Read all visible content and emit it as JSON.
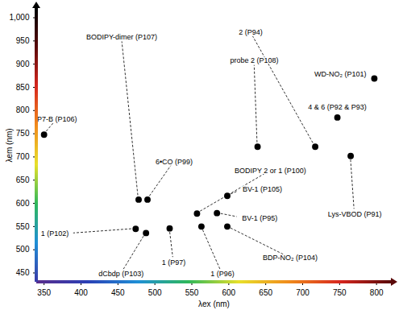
{
  "chart_data": {
    "type": "scatter",
    "x_label": "λex (nm)",
    "y_label": "λem (nm)",
    "labels": [
      "P7-B (P106)",
      "BODIPY-dimer (P107)",
      "probe 2 (P108)",
      "2 (P94)",
      "WD-NO₂ (P101)",
      "6•CO (P99)",
      "BODIPY 2 or 1 (P100)",
      "4 & 6 (P92 & P93)",
      "BV-1 (P105)",
      "BV-1 (P95)",
      "Lys-VBOD (P91)",
      "1 (P102)",
      "dCbdp (P103)",
      "1 (P97)",
      "1 (P96)",
      "BDP-NO₂ (P104)"
    ],
    "x": [
      350,
      478,
      639,
      717,
      797,
      490,
      557,
      747,
      598,
      584,
      765,
      474,
      488,
      520,
      563,
      598
    ],
    "y": [
      748,
      608,
      722,
      722,
      869,
      608,
      578,
      785,
      616,
      579,
      702,
      545,
      536,
      546,
      550,
      550
    ],
    "color": "#000000",
    "marker": "circle",
    "xlim": [
      340,
      820
    ],
    "ylim": [
      430,
      1020
    ],
    "xticks": [
      350,
      400,
      450,
      500,
      550,
      600,
      650,
      700,
      750,
      800
    ],
    "yticks": [
      450,
      500,
      550,
      600,
      650,
      700,
      750,
      800,
      850,
      900,
      950,
      1000
    ],
    "grid": false
  }
}
